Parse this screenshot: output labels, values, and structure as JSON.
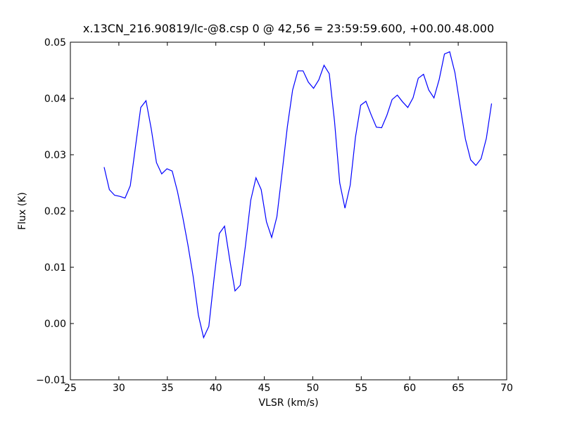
{
  "chart_data": {
    "type": "line",
    "title": "x.13CN_216.90819/lc-@8.csp 0 @ 42,56 = 23:59:59.600, +00.00.48.000",
    "xlabel": "VLSR (km/s)",
    "ylabel": "Flux (K)",
    "x": [
      28.48,
      29.02,
      29.56,
      30.1,
      30.64,
      31.18,
      31.72,
      32.26,
      32.8,
      33.34,
      33.88,
      34.42,
      34.96,
      35.5,
      36.04,
      36.58,
      37.12,
      37.66,
      38.2,
      38.74,
      39.28,
      39.82,
      40.36,
      40.9,
      41.44,
      41.98,
      42.52,
      43.06,
      43.6,
      44.14,
      44.68,
      45.22,
      45.76,
      46.3,
      46.84,
      47.38,
      47.92,
      48.46,
      49.0,
      49.54,
      50.08,
      50.62,
      51.16,
      51.7,
      52.24,
      52.78,
      53.32,
      53.86,
      54.4,
      54.94,
      55.48,
      56.02,
      56.56,
      57.1,
      57.64,
      58.18,
      58.72,
      59.26,
      59.8,
      60.34,
      60.88,
      61.42,
      61.96,
      62.5,
      63.04,
      63.58,
      64.12,
      64.66,
      65.2,
      65.74,
      66.28,
      66.82,
      67.36,
      67.9,
      68.44
    ],
    "series": [
      {
        "color": "#0000ff",
        "values": [
          0.0278,
          0.0238,
          0.0228,
          0.0226,
          0.0223,
          0.0245,
          0.0315,
          0.0384,
          0.0396,
          0.0346,
          0.0286,
          0.0266,
          0.0275,
          0.0271,
          0.0235,
          0.019,
          0.014,
          0.0084,
          0.0015,
          -0.0025,
          -0.0005,
          0.008,
          0.016,
          0.0173,
          0.0113,
          0.0058,
          0.0068,
          0.0139,
          0.0219,
          0.0259,
          0.0238,
          0.0181,
          0.0153,
          0.019,
          0.0269,
          0.035,
          0.0415,
          0.0449,
          0.0449,
          0.0429,
          0.0418,
          0.0433,
          0.0459,
          0.0444,
          0.036,
          0.025,
          0.0205,
          0.0246,
          0.0331,
          0.0388,
          0.0395,
          0.0371,
          0.0349,
          0.0348,
          0.037,
          0.0398,
          0.0406,
          0.0394,
          0.0384,
          0.0401,
          0.0436,
          0.0443,
          0.0415,
          0.0401,
          0.0434,
          0.0479,
          0.0483,
          0.0446,
          0.0386,
          0.0328,
          0.0291,
          0.0281,
          0.0293,
          0.0329,
          0.0391
        ]
      }
    ],
    "xlim": [
      25,
      70
    ],
    "xticks": [
      25,
      30,
      35,
      40,
      45,
      50,
      55,
      60,
      65,
      70
    ],
    "ylim": [
      -0.01,
      0.05
    ],
    "yticks": [
      {
        "value": -0.01,
        "label": "−0.01"
      },
      {
        "value": 0,
        "label": "0.00"
      },
      {
        "value": 0.01,
        "label": "0.01"
      },
      {
        "value": 0.02,
        "label": "0.02"
      },
      {
        "value": 0.03,
        "label": "0.03"
      },
      {
        "value": 0.04,
        "label": "0.04"
      },
      {
        "value": 0.05,
        "label": "0.05"
      }
    ],
    "grid": false
  }
}
